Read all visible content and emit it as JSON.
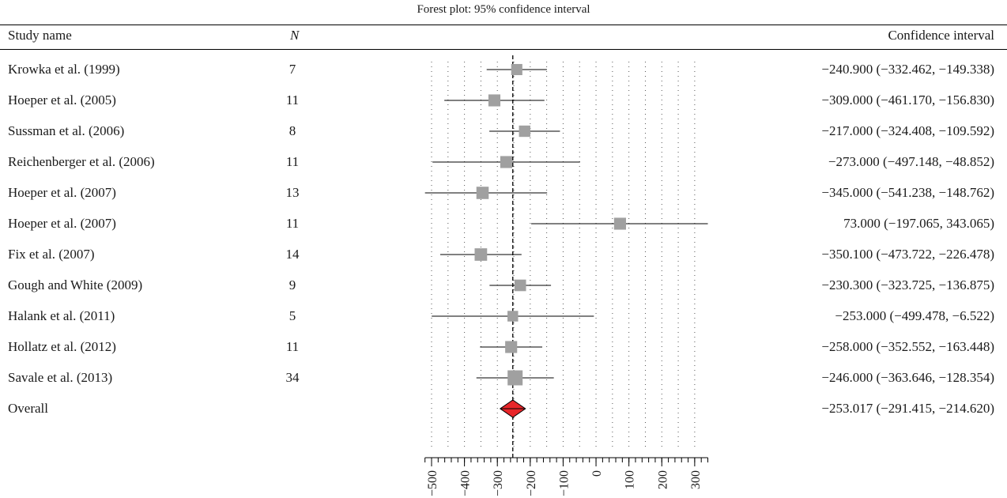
{
  "title": "Forest plot: 95% confidence interval",
  "headers": {
    "study_name": "Study name",
    "n": "N",
    "confidence_interval": "Confidence interval"
  },
  "rows": [
    {
      "study": "Krowka et al. (1999)",
      "n": "7",
      "ci_text": "−240.900 (−332.462, −149.338)"
    },
    {
      "study": "Hoeper et al. (2005)",
      "n": "11",
      "ci_text": "−309.000 (−461.170, −156.830)"
    },
    {
      "study": "Sussman et al. (2006)",
      "n": "8",
      "ci_text": "−217.000 (−324.408, −109.592)"
    },
    {
      "study": "Reichenberger et al. (2006)",
      "n": "11",
      "ci_text": "−273.000 (−497.148, −48.852)"
    },
    {
      "study": "Hoeper et al. (2007)",
      "n": "13",
      "ci_text": "−345.000 (−541.238, −148.762)"
    },
    {
      "study": "Hoeper et al. (2007)",
      "n": "11",
      "ci_text": "73.000 (−197.065, 343.065)"
    },
    {
      "study": "Fix et al. (2007)",
      "n": "14",
      "ci_text": "−350.100 (−473.722, −226.478)"
    },
    {
      "study": "Gough and White (2009)",
      "n": "9",
      "ci_text": "−230.300 (−323.725, −136.875)"
    },
    {
      "study": "Halank et al. (2011)",
      "n": "5",
      "ci_text": "−253.000 (−499.478, −6.522)"
    },
    {
      "study": "Hollatz et al. (2012)",
      "n": "11",
      "ci_text": "−258.000 (−352.552, −163.448)"
    },
    {
      "study": "Savale et al. (2013)",
      "n": "34",
      "ci_text": "−246.000 (−363.646, −128.354)"
    }
  ],
  "overall": {
    "label": "Overall",
    "ci_text": "−253.017 (−291.415, −214.620)"
  },
  "chart_data": {
    "type": "forest",
    "title": "Forest plot: 95% confidence interval",
    "xlim": [
      -520,
      340
    ],
    "reference_line": -253.017,
    "axis_ticks": [
      -500,
      -400,
      -300,
      -200,
      -100,
      0,
      100,
      200,
      300
    ],
    "axis_tick_labels": [
      "−500",
      "−400",
      "−300",
      "−200",
      "−100",
      "0",
      "100",
      "200",
      "300"
    ],
    "minor_tick_step": 20,
    "studies": [
      {
        "name": "Krowka et al. (1999)",
        "n": 7,
        "estimate": -240.9,
        "lower": -332.462,
        "upper": -149.338
      },
      {
        "name": "Hoeper et al. (2005)",
        "n": 11,
        "estimate": -309.0,
        "lower": -461.17,
        "upper": -156.83
      },
      {
        "name": "Sussman et al. (2006)",
        "n": 8,
        "estimate": -217.0,
        "lower": -324.408,
        "upper": -109.592
      },
      {
        "name": "Reichenberger et al. (2006)",
        "n": 11,
        "estimate": -273.0,
        "lower": -497.148,
        "upper": -48.852
      },
      {
        "name": "Hoeper et al. (2007)",
        "n": 13,
        "estimate": -345.0,
        "lower": -541.238,
        "upper": -148.762
      },
      {
        "name": "Hoeper et al. (2007)",
        "n": 11,
        "estimate": 73.0,
        "lower": -197.065,
        "upper": 343.065
      },
      {
        "name": "Fix et al. (2007)",
        "n": 14,
        "estimate": -350.1,
        "lower": -473.722,
        "upper": -226.478
      },
      {
        "name": "Gough and White (2009)",
        "n": 9,
        "estimate": -230.3,
        "lower": -323.725,
        "upper": -136.875
      },
      {
        "name": "Halank et al. (2011)",
        "n": 5,
        "estimate": -253.0,
        "lower": -499.478,
        "upper": -6.522
      },
      {
        "name": "Hollatz et al. (2012)",
        "n": 11,
        "estimate": -258.0,
        "lower": -352.552,
        "upper": -163.448
      },
      {
        "name": "Savale et al. (2013)",
        "n": 34,
        "estimate": -246.0,
        "lower": -363.646,
        "upper": -128.354
      }
    ],
    "overall": {
      "name": "Overall",
      "estimate": -253.017,
      "lower": -291.415,
      "upper": -214.62
    },
    "colors": {
      "study_marker": "#a0a0a0",
      "overall_marker": "#e8262a",
      "line": "#000000"
    }
  }
}
